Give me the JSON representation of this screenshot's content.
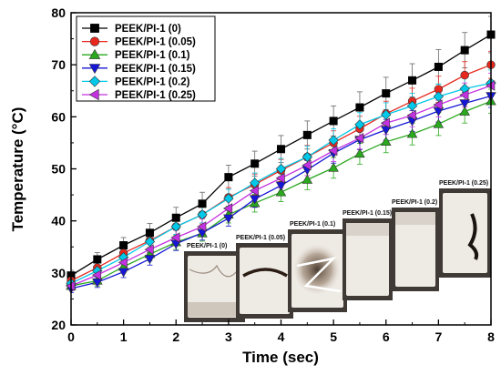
{
  "chart_data": {
    "type": "line",
    "xlabel": "Time (sec)",
    "ylabel": "Temperature (°C)",
    "xlim": [
      0,
      8
    ],
    "ylim": [
      20,
      80
    ],
    "x_ticks": [
      0,
      1,
      2,
      3,
      4,
      5,
      6,
      7,
      8
    ],
    "y_ticks": [
      20,
      30,
      40,
      50,
      60,
      70,
      80
    ],
    "legend_position": "top-left",
    "grid": false,
    "x": [
      0,
      0.5,
      1,
      1.5,
      2,
      2.5,
      3,
      3.5,
      4,
      4.5,
      5,
      5.5,
      6,
      6.5,
      7,
      7.5,
      8
    ],
    "series": [
      {
        "name": "PEEK/PI-1 (0)",
        "color": "#000000",
        "marker": "square",
        "values": [
          29.5,
          32.6,
          35.3,
          37.7,
          40.6,
          43.3,
          48.4,
          51.0,
          53.8,
          56.5,
          59.2,
          61.8,
          64.5,
          67.0,
          69.6,
          72.8,
          75.8
        ],
        "errors": [
          1.0,
          1.3,
          1.5,
          1.8,
          2.0,
          2.2,
          2.3,
          2.4,
          2.6,
          2.7,
          2.9,
          3.0,
          3.1,
          3.2,
          3.3,
          3.4,
          3.5
        ]
      },
      {
        "name": "PEEK/PI-1 (0.05)",
        "color": "#e8281e",
        "marker": "circle",
        "values": [
          28.5,
          31.0,
          33.8,
          36.2,
          38.9,
          41.2,
          44.5,
          47.0,
          49.7,
          52.3,
          55.0,
          57.7,
          60.6,
          63.0,
          65.3,
          68.0,
          70.0
        ],
        "errors": [
          1.0,
          1.2,
          1.3,
          1.5,
          1.6,
          1.8,
          1.9,
          2.0,
          2.1,
          2.2,
          2.3,
          2.4,
          2.4,
          2.5,
          2.5,
          2.6,
          2.6
        ]
      },
      {
        "name": "PEEK/PI-1 (0.1)",
        "color": "#2aa81e",
        "marker": "triangle-up",
        "values": [
          27.5,
          28.5,
          31.2,
          33.6,
          35.9,
          37.6,
          41.2,
          43.4,
          45.5,
          47.9,
          50.2,
          52.9,
          55.2,
          56.7,
          58.6,
          61.0,
          63.0
        ],
        "errors": [
          0.8,
          1.0,
          1.2,
          1.3,
          1.4,
          1.5,
          1.6,
          1.7,
          1.8,
          1.9,
          2.0,
          2.0,
          2.1,
          2.1,
          2.2,
          2.2,
          2.3
        ]
      },
      {
        "name": "PEEK/PI-1 (0.15)",
        "color": "#1616d6",
        "marker": "triangle-down",
        "values": [
          27.0,
          28.2,
          30.2,
          32.7,
          35.6,
          37.7,
          40.5,
          44.2,
          46.8,
          49.8,
          53.0,
          55.6,
          57.5,
          59.2,
          61.1,
          62.6,
          64.0
        ],
        "errors": [
          0.8,
          1.0,
          1.1,
          1.2,
          1.3,
          1.4,
          1.5,
          1.6,
          1.7,
          1.8,
          1.9,
          1.9,
          2.0,
          2.0,
          2.1,
          2.1,
          2.2
        ]
      },
      {
        "name": "PEEK/PI-1 (0.2)",
        "color": "#00c8e8",
        "marker": "diamond",
        "values": [
          28.0,
          30.4,
          33.0,
          36.0,
          38.9,
          41.2,
          44.3,
          47.3,
          50.0,
          52.3,
          55.5,
          58.5,
          60.4,
          62.1,
          63.9,
          65.4,
          66.5
        ],
        "errors": [
          0.9,
          1.1,
          1.2,
          1.4,
          1.5,
          1.6,
          1.8,
          1.9,
          2.0,
          2.1,
          2.2,
          2.3,
          2.3,
          2.4,
          2.4,
          2.5,
          2.5
        ]
      },
      {
        "name": "PEEK/PI-1 (0.25)",
        "color": "#c431e0",
        "marker": "triangle-left",
        "values": [
          27.5,
          29.6,
          32.0,
          34.5,
          36.8,
          38.9,
          42.4,
          45.8,
          48.2,
          50.7,
          53.5,
          55.9,
          58.8,
          60.3,
          62.3,
          64.2,
          66.0
        ],
        "errors": [
          0.9,
          1.0,
          1.2,
          1.3,
          1.4,
          1.5,
          1.7,
          1.8,
          1.9,
          2.0,
          2.1,
          2.1,
          2.2,
          2.2,
          2.3,
          2.3,
          2.4
        ]
      }
    ]
  },
  "inset_photos": [
    {
      "label": "PEEK/PI-1 (0)"
    },
    {
      "label": "PEEK/PI-1 (0.05)"
    },
    {
      "label": "PEEK/PI-1 (0.1)"
    },
    {
      "label": "PEEK/PI-1 (0.15)"
    },
    {
      "label": "PEEK/PI-1 (0.2)"
    },
    {
      "label": "PEEK/PI-1 (0.25)"
    }
  ]
}
